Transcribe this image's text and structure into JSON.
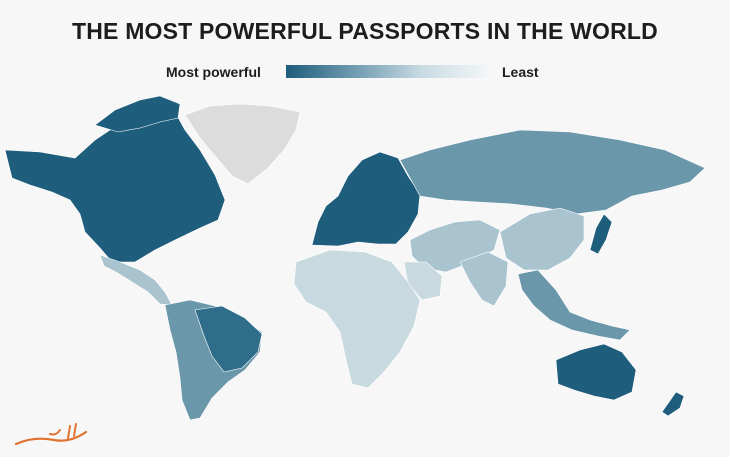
{
  "title": "THE MOST POWERFUL PASSPORTS IN THE WORLD",
  "legend": {
    "high_label": "Most powerful",
    "low_label": "Least",
    "scale_colors": [
      "#1f5d7c",
      "#6f9bb0",
      "#c9dbe3",
      "#f4f7f8"
    ]
  },
  "map_colors": {
    "darkest": "#1f5d7c",
    "dark": "#2f6d8a",
    "mid": "#6b97ab",
    "light": "#a9c3cf",
    "lighter": "#c9d9e0",
    "no_data": "#dcdcdc"
  },
  "regions": [
    {
      "name": "North America",
      "level": "darkest"
    },
    {
      "name": "Greenland",
      "level": "no_data"
    },
    {
      "name": "Central America",
      "level": "light"
    },
    {
      "name": "South America",
      "level": "mid"
    },
    {
      "name": "Brazil",
      "level": "dark"
    },
    {
      "name": "Europe",
      "level": "darkest"
    },
    {
      "name": "Russia",
      "level": "mid"
    },
    {
      "name": "Middle East",
      "level": "light"
    },
    {
      "name": "Africa",
      "level": "lighter"
    },
    {
      "name": "South Asia",
      "level": "light"
    },
    {
      "name": "China",
      "level": "light"
    },
    {
      "name": "Japan",
      "level": "darkest"
    },
    {
      "name": "Southeast Asia",
      "level": "mid"
    },
    {
      "name": "Australia",
      "level": "darkest"
    },
    {
      "name": "New Zealand",
      "level": "darkest"
    }
  ],
  "watermark": "الی گشت",
  "watermark_color": "#e0722e"
}
